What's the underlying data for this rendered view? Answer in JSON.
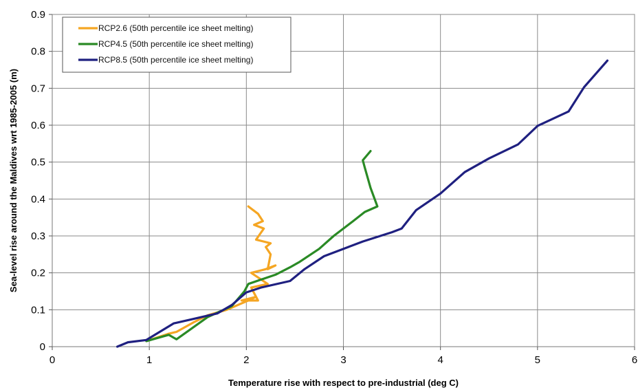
{
  "chart_data": {
    "type": "line",
    "xlabel": "Temperature rise with respect to pre-industrial (deg C)",
    "ylabel": "Sea-level rise around the Maldives wrt 1985-2005 (m)",
    "xlim": [
      0,
      6
    ],
    "ylim": [
      0,
      0.9
    ],
    "x_ticks": [
      "0",
      "1",
      "2",
      "3",
      "4",
      "5",
      "6"
    ],
    "y_ticks": [
      "0",
      "0.1",
      "0.2",
      "0.3",
      "0.4",
      "0.5",
      "0.6",
      "0.7",
      "0.8",
      "0.9"
    ],
    "grid": true,
    "legend_position": "top-left",
    "series": [
      {
        "name": "RCP2.6 (50th percentile ice sheet melting)",
        "color": "#f5a623",
        "points": [
          [
            0.97,
            0.015
          ],
          [
            1.2,
            0.035
          ],
          [
            1.28,
            0.04
          ],
          [
            1.45,
            0.065
          ],
          [
            1.6,
            0.085
          ],
          [
            1.8,
            0.1
          ],
          [
            1.93,
            0.115
          ],
          [
            2.02,
            0.125
          ],
          [
            2.1,
            0.135
          ],
          [
            1.95,
            0.125
          ],
          [
            2.12,
            0.125
          ],
          [
            2.05,
            0.16
          ],
          [
            2.22,
            0.17
          ],
          [
            2.05,
            0.2
          ],
          [
            2.2,
            0.21
          ],
          [
            2.3,
            0.22
          ],
          [
            2.22,
            0.21
          ],
          [
            2.25,
            0.25
          ],
          [
            2.2,
            0.27
          ],
          [
            2.25,
            0.28
          ],
          [
            2.1,
            0.29
          ],
          [
            2.18,
            0.32
          ],
          [
            2.08,
            0.33
          ],
          [
            2.17,
            0.34
          ],
          [
            2.12,
            0.36
          ],
          [
            2.02,
            0.38
          ]
        ]
      },
      {
        "name": "RCP4.5 (50th percentile  ice sheet melting)",
        "color": "#2a8a25",
        "points": [
          [
            0.97,
            0.015
          ],
          [
            1.2,
            0.032
          ],
          [
            1.28,
            0.02
          ],
          [
            1.6,
            0.08
          ],
          [
            1.85,
            0.11
          ],
          [
            1.98,
            0.15
          ],
          [
            2.02,
            0.17
          ],
          [
            2.3,
            0.195
          ],
          [
            2.45,
            0.215
          ],
          [
            2.55,
            0.23
          ],
          [
            2.75,
            0.265
          ],
          [
            2.9,
            0.3
          ],
          [
            3.1,
            0.34
          ],
          [
            3.22,
            0.365
          ],
          [
            3.35,
            0.38
          ],
          [
            3.28,
            0.43
          ],
          [
            3.22,
            0.485
          ],
          [
            3.2,
            0.505
          ],
          [
            3.28,
            0.53
          ]
        ]
      },
      {
        "name": "RCP8.5 (50th percentile ice sheet melting)",
        "color": "#1f2080",
        "points": [
          [
            0.67,
            0.0
          ],
          [
            0.78,
            0.012
          ],
          [
            0.97,
            0.018
          ],
          [
            1.25,
            0.063
          ],
          [
            1.45,
            0.075
          ],
          [
            1.7,
            0.09
          ],
          [
            1.85,
            0.113
          ],
          [
            2.0,
            0.147
          ],
          [
            2.15,
            0.16
          ],
          [
            2.45,
            0.178
          ],
          [
            2.6,
            0.21
          ],
          [
            2.8,
            0.245
          ],
          [
            3.05,
            0.27
          ],
          [
            3.2,
            0.285
          ],
          [
            3.5,
            0.31
          ],
          [
            3.6,
            0.32
          ],
          [
            3.75,
            0.37
          ],
          [
            4.0,
            0.415
          ],
          [
            4.25,
            0.473
          ],
          [
            4.5,
            0.51
          ],
          [
            4.8,
            0.548
          ],
          [
            5.0,
            0.598
          ],
          [
            5.32,
            0.637
          ],
          [
            5.48,
            0.703
          ],
          [
            5.72,
            0.775
          ]
        ]
      }
    ]
  }
}
